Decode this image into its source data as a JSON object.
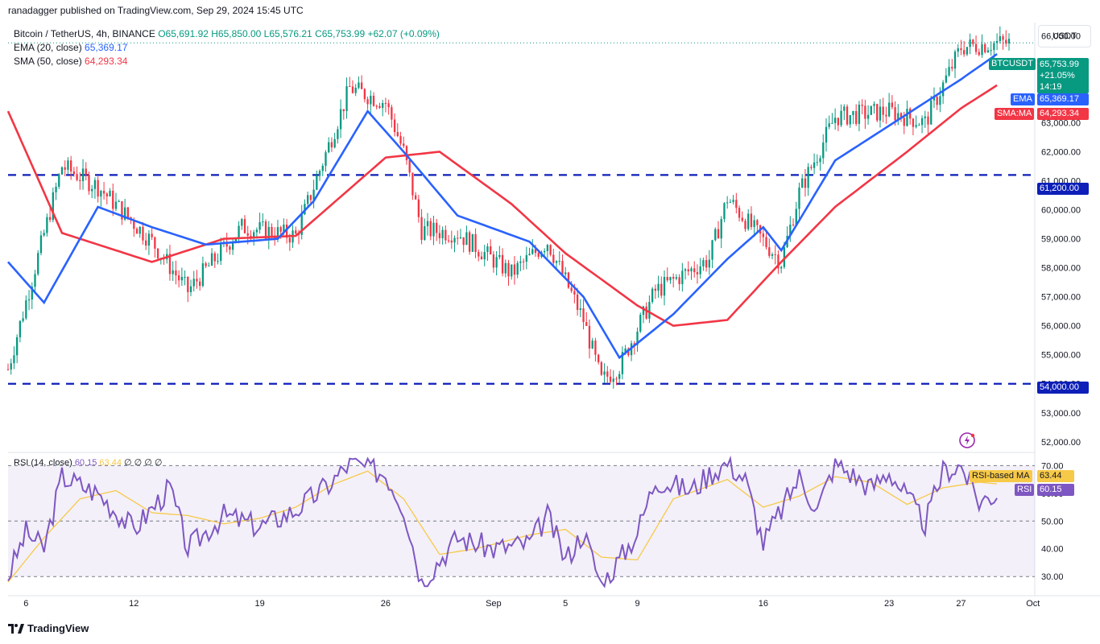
{
  "header": {
    "publisher_line": "ranadagger published on TradingView.com, Sep 29, 2024 15:45 UTC"
  },
  "legend": {
    "symbol": "Bitcoin / TetherUS, 4h, BINANCE",
    "o": "O65,691.92",
    "h": "H65,850.00",
    "l": "L65,576.21",
    "c": "C65,753.99",
    "change": "+62.07 (+0.09%)",
    "ema_label": "EMA (20, close)",
    "ema_value": "65,369.17",
    "sma_label": "SMA (50, close)",
    "sma_value": "64,293.34"
  },
  "rsi_legend": {
    "label": "RSI (14, close)",
    "rsi_value": "60.15",
    "ma_value": "63.44",
    "extra": "∅ ∅ ∅ ∅"
  },
  "currency_button": "USDT",
  "price_tags": {
    "symbol_tag": "BTCUSDT",
    "price": "65,753.99",
    "pct": "+21.05%",
    "countdown": "14:19",
    "ema_tag": "EMA",
    "ema_val": "65,369.17",
    "sma_tag": "SMA:MA",
    "sma_val": "64,293.34",
    "level_high": "61,200.00",
    "level_low": "54,000.00",
    "rsi_ma_tag": "RSI-based MA",
    "rsi_ma_val": "63.44",
    "rsi_tag": "RSI",
    "rsi_val": "60.15"
  },
  "footer": {
    "brand": "TradingView"
  },
  "colors": {
    "up": "#089981",
    "down": "#f23645",
    "ema": "#2962ff",
    "sma": "#f23645",
    "rsi": "#7e57c2",
    "rsi_ma": "#f7c948",
    "level": "#0d1fb8",
    "rsi_band": "#7e57c2"
  },
  "chart_data": {
    "type": "candlestick",
    "title": "Bitcoin / TetherUS, 4h, BINANCE",
    "price_axis": {
      "ticks": [
        "66,000.00",
        "65,000.00",
        "64,000.00",
        "63,000.00",
        "62,000.00",
        "61,000.00",
        "60,000.00",
        "59,000.00",
        "58,000.00",
        "57,000.00",
        "56,000.00",
        "55,000.00",
        "54,000.00",
        "53,000.00",
        "52,000.00"
      ],
      "ylim": [
        51800,
        66400
      ]
    },
    "time_axis": {
      "ticks": [
        "6",
        "12",
        "19",
        "26",
        "Sep",
        "5",
        "9",
        "16",
        "23",
        "27",
        "Oct"
      ]
    },
    "horizontal_levels": [
      61200,
      54000
    ],
    "current_price": 65753.99,
    "key_points_close": [
      {
        "t": "Aug 5",
        "v": 54500
      },
      {
        "t": "Aug 8",
        "v": 61500
      },
      {
        "t": "Aug 10",
        "v": 60800
      },
      {
        "t": "Aug 13",
        "v": 58900
      },
      {
        "t": "Aug 15",
        "v": 57200
      },
      {
        "t": "Aug 18",
        "v": 59400
      },
      {
        "t": "Aug 21",
        "v": 59100
      },
      {
        "t": "Aug 24",
        "v": 64200
      },
      {
        "t": "Aug 26",
        "v": 63700
      },
      {
        "t": "Aug 27",
        "v": 62000
      },
      {
        "t": "Aug 28",
        "v": 59300
      },
      {
        "t": "Aug 30",
        "v": 59200
      },
      {
        "t": "Sep 2",
        "v": 57800
      },
      {
        "t": "Sep 4",
        "v": 58900
      },
      {
        "t": "Sep 6",
        "v": 56200
      },
      {
        "t": "Sep 7",
        "v": 54100
      },
      {
        "t": "Sep 8",
        "v": 54600
      },
      {
        "t": "Sep 10",
        "v": 57200
      },
      {
        "t": "Sep 13",
        "v": 58300
      },
      {
        "t": "Sep 14",
        "v": 60400
      },
      {
        "t": "Sep 17",
        "v": 58200
      },
      {
        "t": "Sep 18",
        "v": 60600
      },
      {
        "t": "Sep 20",
        "v": 63200
      },
      {
        "t": "Sep 23",
        "v": 63400
      },
      {
        "t": "Sep 25",
        "v": 63000
      },
      {
        "t": "Sep 27",
        "v": 65600
      },
      {
        "t": "Sep 29",
        "v": 65754
      }
    ],
    "ema_points": [
      {
        "t": "Aug 5",
        "v": 58200
      },
      {
        "t": "Aug 7",
        "v": 56800
      },
      {
        "t": "Aug 10",
        "v": 60100
      },
      {
        "t": "Aug 13",
        "v": 59400
      },
      {
        "t": "Aug 16",
        "v": 58800
      },
      {
        "t": "Aug 20",
        "v": 59000
      },
      {
        "t": "Aug 22",
        "v": 60300
      },
      {
        "t": "Aug 25",
        "v": 63400
      },
      {
        "t": "Aug 27",
        "v": 62000
      },
      {
        "t": "Aug 30",
        "v": 59800
      },
      {
        "t": "Sep 3",
        "v": 58900
      },
      {
        "t": "Sep 6",
        "v": 57000
      },
      {
        "t": "Sep 8",
        "v": 54900
      },
      {
        "t": "Sep 11",
        "v": 56400
      },
      {
        "t": "Sep 14",
        "v": 58300
      },
      {
        "t": "Sep 16",
        "v": 59400
      },
      {
        "t": "Sep 17",
        "v": 58600
      },
      {
        "t": "Sep 20",
        "v": 61700
      },
      {
        "t": "Sep 24",
        "v": 63300
      },
      {
        "t": "Sep 27",
        "v": 64500
      },
      {
        "t": "Sep 29",
        "v": 65369
      }
    ],
    "sma_points": [
      {
        "t": "Aug 5",
        "v": 63400
      },
      {
        "t": "Aug 8",
        "v": 59200
      },
      {
        "t": "Aug 13",
        "v": 58200
      },
      {
        "t": "Aug 17",
        "v": 59000
      },
      {
        "t": "Aug 21",
        "v": 59100
      },
      {
        "t": "Aug 26",
        "v": 61800
      },
      {
        "t": "Aug 29",
        "v": 62000
      },
      {
        "t": "Sep 2",
        "v": 60200
      },
      {
        "t": "Sep 5",
        "v": 58500
      },
      {
        "t": "Sep 9",
        "v": 56700
      },
      {
        "t": "Sep 11",
        "v": 56000
      },
      {
        "t": "Sep 14",
        "v": 56200
      },
      {
        "t": "Sep 17",
        "v": 58200
      },
      {
        "t": "Sep 20",
        "v": 60100
      },
      {
        "t": "Sep 24",
        "v": 62000
      },
      {
        "t": "Sep 27",
        "v": 63500
      },
      {
        "t": "Sep 29",
        "v": 64293
      }
    ],
    "rsi": {
      "axis_ticks": [
        "70.00",
        "60.00",
        "50.00",
        "40.00",
        "30.00"
      ],
      "ylim": [
        26,
        73
      ],
      "band": [
        30,
        70
      ],
      "midline": 50,
      "rsi_value": 60.15,
      "ma_value": 63.44,
      "rsi_points": [
        {
          "t": "Aug 5",
          "v": 30
        },
        {
          "t": "Aug 6",
          "v": 46
        },
        {
          "t": "Aug 7",
          "v": 40
        },
        {
          "t": "Aug 8",
          "v": 66
        },
        {
          "t": "Aug 10",
          "v": 60
        },
        {
          "t": "Aug 12",
          "v": 47
        },
        {
          "t": "Aug 14",
          "v": 62
        },
        {
          "t": "Aug 15",
          "v": 40
        },
        {
          "t": "Aug 17",
          "v": 52
        },
        {
          "t": "Aug 19",
          "v": 48
        },
        {
          "t": "Aug 21",
          "v": 54
        },
        {
          "t": "Aug 23",
          "v": 64
        },
        {
          "t": "Aug 24",
          "v": 71
        },
        {
          "t": "Aug 26",
          "v": 67
        },
        {
          "t": "Aug 27",
          "v": 55
        },
        {
          "t": "Aug 28",
          "v": 28
        },
        {
          "t": "Aug 30",
          "v": 44
        },
        {
          "t": "Sep 1",
          "v": 40
        },
        {
          "t": "Sep 3",
          "v": 42
        },
        {
          "t": "Sep 4",
          "v": 52
        },
        {
          "t": "Sep 5",
          "v": 36
        },
        {
          "t": "Sep 6",
          "v": 46
        },
        {
          "t": "Sep 7",
          "v": 27
        },
        {
          "t": "Sep 8",
          "v": 36
        },
        {
          "t": "Sep 9",
          "v": 46
        },
        {
          "t": "Sep 10",
          "v": 65
        },
        {
          "t": "Sep 12",
          "v": 61
        },
        {
          "t": "Sep 13",
          "v": 67
        },
        {
          "t": "Sep 14",
          "v": 71
        },
        {
          "t": "Sep 15",
          "v": 65
        },
        {
          "t": "Sep 16",
          "v": 42
        },
        {
          "t": "Sep 18",
          "v": 66
        },
        {
          "t": "Sep 19",
          "v": 54
        },
        {
          "t": "Sep 20",
          "v": 71
        },
        {
          "t": "Sep 22",
          "v": 62
        },
        {
          "t": "Sep 23",
          "v": 68
        },
        {
          "t": "Sep 25",
          "v": 49
        },
        {
          "t": "Sep 26",
          "v": 68
        },
        {
          "t": "Sep 27",
          "v": 70
        },
        {
          "t": "Sep 28",
          "v": 57
        },
        {
          "t": "Sep 29",
          "v": 60
        }
      ],
      "ma_points": [
        {
          "t": "Aug 5",
          "v": 28
        },
        {
          "t": "Aug 7",
          "v": 44
        },
        {
          "t": "Aug 9",
          "v": 58
        },
        {
          "t": "Aug 11",
          "v": 61
        },
        {
          "t": "Aug 13",
          "v": 53
        },
        {
          "t": "Aug 15",
          "v": 52
        },
        {
          "t": "Aug 17",
          "v": 49
        },
        {
          "t": "Aug 19",
          "v": 51
        },
        {
          "t": "Aug 21",
          "v": 55
        },
        {
          "t": "Aug 23",
          "v": 63
        },
        {
          "t": "Aug 25",
          "v": 68
        },
        {
          "t": "Aug 27",
          "v": 58
        },
        {
          "t": "Aug 29",
          "v": 38
        },
        {
          "t": "Aug 31",
          "v": 40
        },
        {
          "t": "Sep 3",
          "v": 45
        },
        {
          "t": "Sep 5",
          "v": 47
        },
        {
          "t": "Sep 7",
          "v": 37
        },
        {
          "t": "Sep 9",
          "v": 36
        },
        {
          "t": "Sep 11",
          "v": 58
        },
        {
          "t": "Sep 14",
          "v": 65
        },
        {
          "t": "Sep 16",
          "v": 55
        },
        {
          "t": "Sep 18",
          "v": 59
        },
        {
          "t": "Sep 20",
          "v": 66
        },
        {
          "t": "Sep 22",
          "v": 64
        },
        {
          "t": "Sep 24",
          "v": 56
        },
        {
          "t": "Sep 26",
          "v": 62
        },
        {
          "t": "Sep 28",
          "v": 64
        },
        {
          "t": "Sep 29",
          "v": 63.4
        }
      ]
    }
  }
}
